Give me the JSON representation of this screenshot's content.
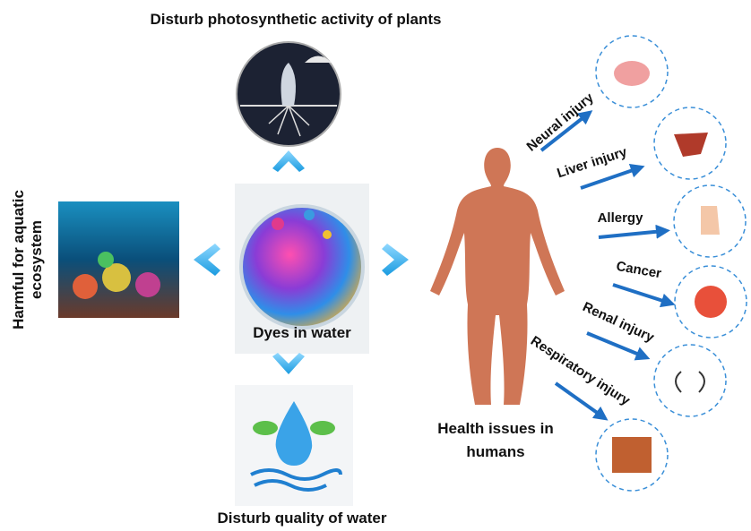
{
  "center": {
    "label": "Dyes in water"
  },
  "top": {
    "label": "Disturb photosynthetic activity of plants"
  },
  "bottom": {
    "label": "Disturb quality of water"
  },
  "left": {
    "lines": [
      "Harmful for aquatic",
      "ecosystem"
    ]
  },
  "right": {
    "lines": [
      "Health issues in",
      "humans"
    ]
  },
  "effects": [
    "Neural injury",
    "Liver injury",
    "Allergy",
    "Cancer",
    "Renal injury",
    "Respiratory injury"
  ]
}
